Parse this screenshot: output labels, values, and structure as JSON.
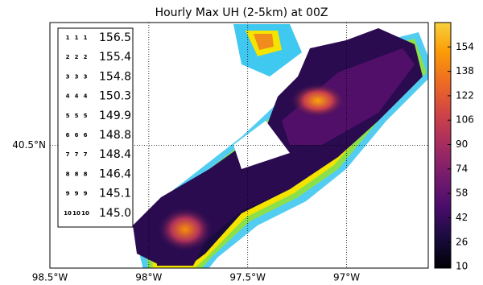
{
  "title": "Hourly Max UH (2-5km) at 00Z",
  "legend": [
    {
      "marker": "1",
      "value": 156.5
    },
    {
      "marker": "2",
      "value": 155.4
    },
    {
      "marker": "3",
      "value": 154.8
    },
    {
      "marker": "4",
      "value": 150.3
    },
    {
      "marker": "5",
      "value": 149.9
    },
    {
      "marker": "6",
      "value": 148.8
    },
    {
      "marker": "7",
      "value": 148.4
    },
    {
      "marker": "8",
      "value": 146.4
    },
    {
      "marker": "9",
      "value": 145.1
    },
    {
      "marker": "10",
      "value": {
        "value": 145,
        "label": "145.0"
      }
    }
  ],
  "map": {
    "xlim": [
      -98.5,
      -96.587
    ],
    "ylim": [
      40.11,
      40.89
    ],
    "xticks": [
      {
        "value": -98.5,
        "label": "98.5°W"
      },
      {
        "value": -98,
        "label": "98°W"
      },
      {
        "value": -97.5,
        "label": "97.5°W"
      },
      {
        "value": -97,
        "label": "97°W"
      }
    ],
    "yticks": [
      {
        "value": 40.5,
        "label": "40.5°N"
      }
    ]
  },
  "colorbar": {
    "lim": [
      9,
      170
    ],
    "ticks": [
      10,
      26,
      42,
      58,
      74,
      90,
      106,
      122,
      138,
      154
    ]
  }
}
